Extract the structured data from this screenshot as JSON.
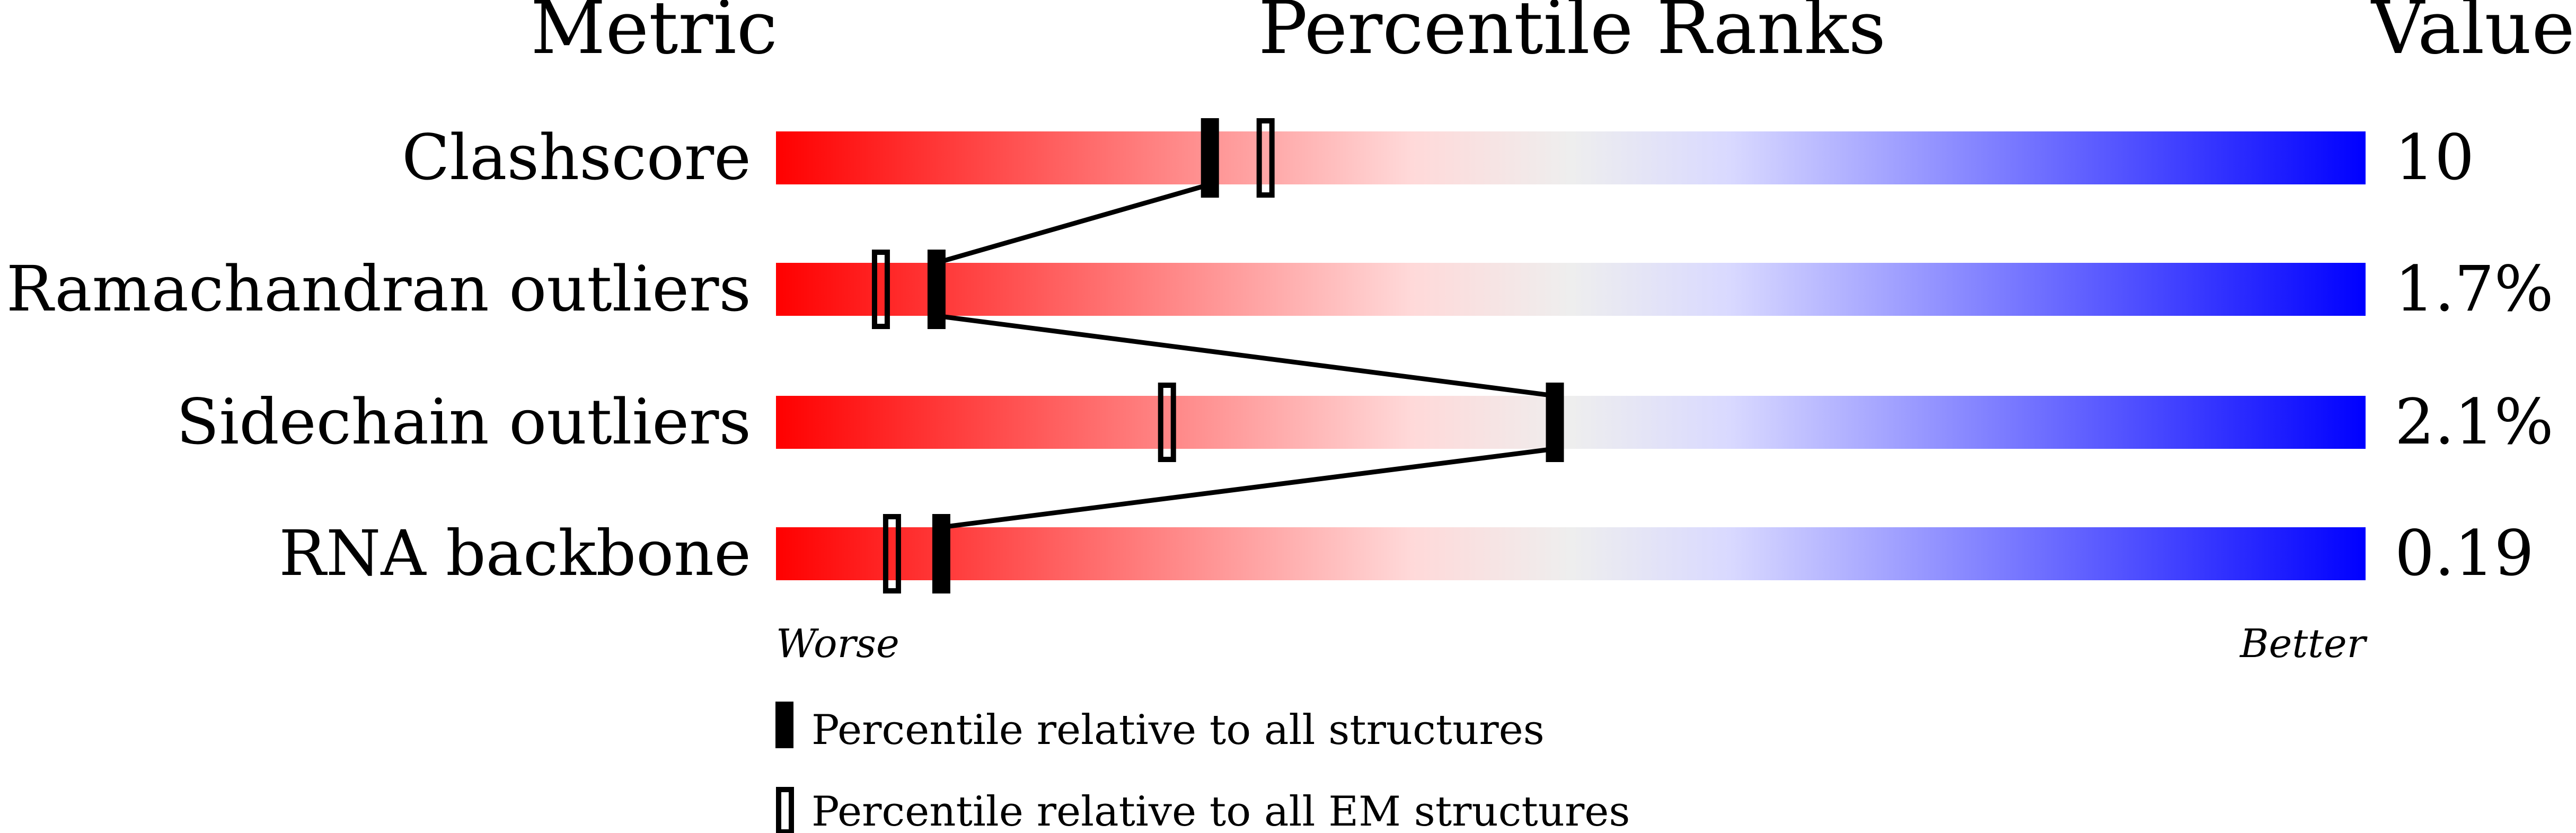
{
  "chart_data": {
    "type": "percentile-slider",
    "headers": {
      "metric": "Metric",
      "ranks": "Percentile Ranks",
      "value": "Value"
    },
    "xlim": [
      0,
      100
    ],
    "axis_labels": {
      "low": "Worse",
      "high": "Better"
    },
    "gradient_colors": [
      "#ff0000",
      "#ffd9d9",
      "#eeeeee",
      "#d9d9ff",
      "#0000ff"
    ],
    "rows": [
      {
        "metric": "Clashscore",
        "value": "10",
        "percentile_all": 27.3,
        "percentile_em": 30.8
      },
      {
        "metric": "Ramachandran outliers",
        "value": "1.7%",
        "percentile_all": 10.1,
        "percentile_em": 6.6
      },
      {
        "metric": "Sidechain outliers",
        "value": "2.1%",
        "percentile_all": 49.0,
        "percentile_em": 24.6
      },
      {
        "metric": "RNA backbone",
        "value": "0.19",
        "percentile_all": 10.4,
        "percentile_em": 7.3
      }
    ],
    "legend": [
      {
        "marker": "filled",
        "label": "Percentile relative to all structures"
      },
      {
        "marker": "open",
        "label": "Percentile relative to all EM structures"
      }
    ]
  }
}
